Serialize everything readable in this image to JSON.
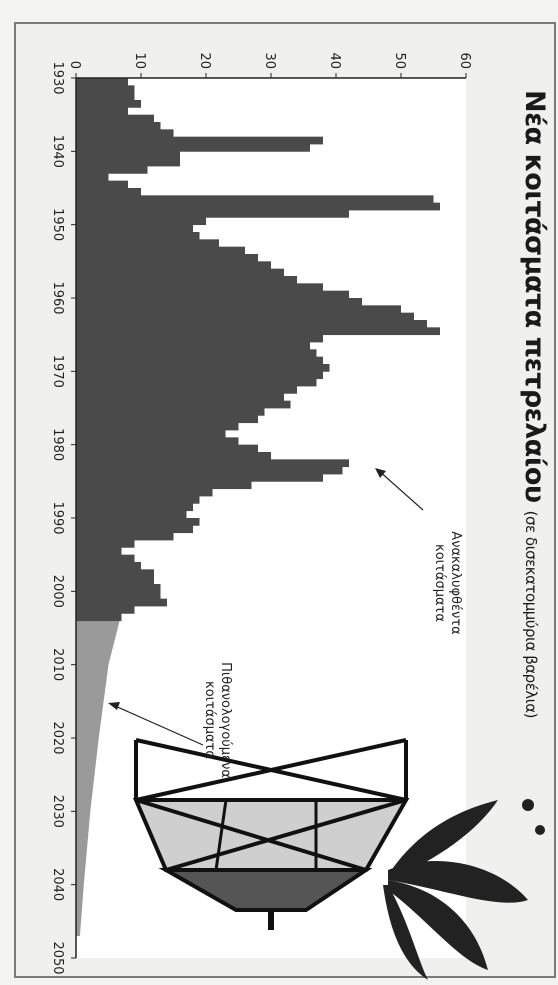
{
  "title": "Νέα κοιτάσματα πετρελαίου",
  "subtitle": "(σε δισεκατομμύρια βαρέλια)",
  "annotations": {
    "discovered_line1": "Ανακαλυφθέντα",
    "discovered_line2": "κοιτάσματα",
    "probable_line1": "Πιθανολογούμενα",
    "probable_line2": "κοιτάσματα"
  },
  "colors": {
    "discovered": "#4a4a4a",
    "probable": "#9a9a9a",
    "background": "#ffffff"
  },
  "icons": [
    "oil-derrick-icon",
    "oil-gusher-icon"
  ],
  "chart_data": {
    "type": "bar",
    "orientation": "rotated-90",
    "title": "Νέα κοιτάσματα πετρελαίου",
    "subtitle": "(σε δισεκατομμύρια βαρέλια)",
    "xlabel": "",
    "ylabel": "",
    "xlim": [
      1930,
      2050
    ],
    "ylim": [
      0,
      60
    ],
    "x_ticks": [
      "1930",
      "1940",
      "1950",
      "1960",
      "1970",
      "1980",
      "1990",
      "2000",
      "2010",
      "2020",
      "2030",
      "2040",
      "2050"
    ],
    "y_ticks": [
      "0",
      "10",
      "20",
      "30",
      "40",
      "50",
      "60"
    ],
    "grid": false,
    "series": [
      {
        "name": "Ανακαλυφθέντα κοιτάσματα",
        "years": [
          1930,
          1931,
          1932,
          1933,
          1934,
          1935,
          1936,
          1937,
          1938,
          1939,
          1940,
          1941,
          1942,
          1943,
          1944,
          1945,
          1946,
          1947,
          1948,
          1949,
          1950,
          1951,
          1952,
          1953,
          1954,
          1955,
          1956,
          1957,
          1958,
          1959,
          1960,
          1961,
          1962,
          1963,
          1964,
          1965,
          1966,
          1967,
          1968,
          1969,
          1970,
          1971,
          1972,
          1973,
          1974,
          1975,
          1976,
          1977,
          1978,
          1979,
          1980,
          1981,
          1982,
          1983,
          1984,
          1985,
          1986,
          1987,
          1988,
          1989,
          1990,
          1991,
          1992,
          1993,
          1994,
          1995,
          1996,
          1997,
          1998,
          1999,
          2000,
          2001,
          2002,
          2003
        ],
        "values": [
          8,
          9,
          9,
          10,
          8,
          12,
          13,
          15,
          38,
          36,
          16,
          16,
          11,
          5,
          8,
          10,
          55,
          56,
          42,
          20,
          18,
          19,
          22,
          26,
          28,
          30,
          32,
          34,
          38,
          42,
          44,
          50,
          52,
          54,
          56,
          38,
          36,
          37,
          38,
          39,
          38,
          37,
          34,
          32,
          33,
          29,
          28,
          25,
          23,
          25,
          28,
          30,
          42,
          41,
          38,
          27,
          21,
          19,
          18,
          17,
          19,
          18,
          15,
          9,
          7,
          9,
          10,
          12,
          12,
          13,
          13,
          14,
          9,
          7
        ]
      },
      {
        "name": "Πιθανολογούμενα κοιτάσματα",
        "years": [
          2003,
          2010,
          2020,
          2030,
          2040,
          2047
        ],
        "values": [
          7,
          5,
          3.5,
          2.2,
          1.2,
          0.6
        ]
      }
    ]
  }
}
